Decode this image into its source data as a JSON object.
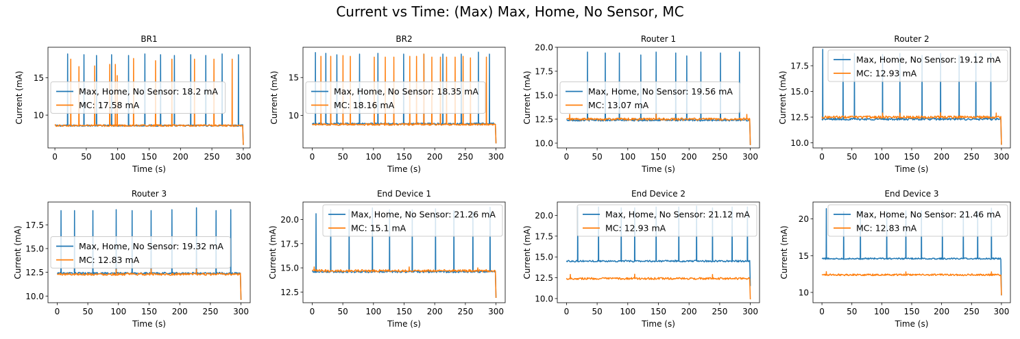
{
  "figure": {
    "suptitle": "Current vs Time: (Max) Max, Home, No Sensor, MC",
    "colors": {
      "series_a": "#1f77b4",
      "series_b": "#ff7f0e"
    }
  },
  "chart_data": [
    {
      "type": "line",
      "title": "BR1",
      "xlabel": "Time (s)",
      "ylabel": "Current (mA)",
      "xlim": [
        -11,
        311
      ],
      "ylim": [
        5.6,
        19.1
      ],
      "xticks": [
        0,
        50,
        100,
        150,
        200,
        250,
        300
      ],
      "yticks": [
        10,
        15
      ],
      "legend_position": "center-left",
      "baseline": [
        8.6,
        8.6
      ],
      "end_drop": [
        6.0,
        6.0
      ],
      "series": [
        {
          "name": "Max, Home, No Sensor: 18.2 mA",
          "spikes": [
            [
              20,
              18.2
            ],
            [
              46,
              18.1
            ],
            [
              66,
              18.0
            ],
            [
              90,
              18.1
            ],
            [
              117,
              18.0
            ],
            [
              143,
              18.2
            ],
            [
              168,
              18.1
            ],
            [
              190,
              18.0
            ],
            [
              216,
              18.1
            ],
            [
              240,
              18.0
            ],
            [
              266,
              18.2
            ],
            [
              292,
              18.1
            ]
          ]
        },
        {
          "name": "MC: 17.58 mA",
          "spikes": [
            [
              25,
              17.5
            ],
            [
              38,
              16.5
            ],
            [
              63,
              16.6
            ],
            [
              87,
              16.8
            ],
            [
              96,
              16.8
            ],
            [
              99,
              15.3
            ],
            [
              125,
              17.6
            ],
            [
              160,
              17.3
            ],
            [
              186,
              17.5
            ],
            [
              222,
              17.5
            ],
            [
              253,
              17.5
            ],
            [
              282,
              17.5
            ]
          ]
        }
      ]
    },
    {
      "type": "line",
      "title": "BR2",
      "xlabel": "Time (s)",
      "ylabel": "Current (mA)",
      "xlim": [
        -15,
        315
      ],
      "ylim": [
        5.7,
        19.0
      ],
      "xticks": [
        0,
        50,
        100,
        150,
        200,
        250,
        300
      ],
      "yticks": [
        10,
        15
      ],
      "legend_position": "center-left",
      "baseline": [
        8.9,
        8.8
      ],
      "end_drop": [
        6.3,
        6.3
      ],
      "series": [
        {
          "name": "Max, Home, No Sensor: 18.35 mA",
          "spikes": [
            [
              5,
              18.3
            ],
            [
              22,
              18.2
            ],
            [
              40,
              18.0
            ],
            [
              77,
              18.1
            ],
            [
              107,
              18.2
            ],
            [
              149,
              18.1
            ],
            [
              182,
              18.1
            ],
            [
              213,
              18.1
            ],
            [
              243,
              18.1
            ],
            [
              271,
              18.35
            ],
            [
              289,
              18.1
            ]
          ]
        },
        {
          "name": "MC: 18.16 mA",
          "spikes": [
            [
              14,
              17.8
            ],
            [
              30,
              17.8
            ],
            [
              50,
              17.9
            ],
            [
              62,
              17.8
            ],
            [
              101,
              17.7
            ],
            [
              119,
              17.7
            ],
            [
              133,
              17.7
            ],
            [
              159,
              17.8
            ],
            [
              170,
              17.8
            ],
            [
              182,
              18.1
            ],
            [
              195,
              17.7
            ],
            [
              209,
              17.7
            ],
            [
              219,
              17.7
            ],
            [
              233,
              17.7
            ],
            [
              246,
              17.8
            ],
            [
              258,
              17.6
            ],
            [
              284,
              17.7
            ]
          ]
        }
      ]
    },
    {
      "type": "line",
      "title": "Router 1",
      "xlabel": "Time (s)",
      "ylabel": "Current (mA)",
      "xlim": [
        -15,
        315
      ],
      "ylim": [
        9.5,
        20.0
      ],
      "xticks": [
        0,
        50,
        100,
        150,
        200,
        250,
        300
      ],
      "yticks": [
        10.0,
        12.5,
        15.0,
        17.5,
        20.0
      ],
      "legend_position": "center-left",
      "baseline": [
        12.4,
        12.5
      ],
      "end_drop": [
        9.8,
        9.8
      ],
      "series": [
        {
          "name": "Max, Home, No Sensor: 19.56 mA",
          "spikes": [
            [
              34,
              19.5
            ],
            [
              63,
              19.4
            ],
            [
              86,
              19.4
            ],
            [
              121,
              19.2
            ],
            [
              146,
              19.5
            ],
            [
              178,
              19.4
            ],
            [
              196,
              19.1
            ],
            [
              219,
              19.5
            ],
            [
              251,
              19.4
            ],
            [
              282,
              19.5
            ]
          ]
        },
        {
          "name": "MC: 13.07 mA",
          "spikes": [
            [
              5,
              13.0
            ],
            [
              146,
              13.07
            ],
            [
              294,
              13.0
            ]
          ]
        }
      ]
    },
    {
      "type": "line",
      "title": "Router 2",
      "xlabel": "Time (s)",
      "ylabel": "Current (mA)",
      "xlim": [
        -15,
        315
      ],
      "ylim": [
        9.5,
        19.3
      ],
      "xticks": [
        0,
        50,
        100,
        150,
        200,
        250,
        300
      ],
      "yticks": [
        10.0,
        12.5,
        15.0,
        17.5
      ],
      "legend_position": "top-right",
      "baseline": [
        12.3,
        12.5
      ],
      "end_drop": [
        9.8,
        9.8
      ],
      "series": [
        {
          "name": "Max, Home, No Sensor: 19.12 mA",
          "spikes": [
            [
              1,
              19.1
            ],
            [
              35,
              18.6
            ],
            [
              54,
              18.7
            ],
            [
              101,
              18.6
            ],
            [
              130,
              18.7
            ],
            [
              167,
              18.5
            ],
            [
              198,
              18.7
            ],
            [
              229,
              18.5
            ],
            [
              257,
              18.7
            ],
            [
              282,
              18.7
            ]
          ]
        },
        {
          "name": "MC: 12.93 mA",
          "spikes": [
            [
              101,
              12.9
            ],
            [
              130,
              12.9
            ],
            [
              198,
              12.93
            ],
            [
              291,
              12.9
            ]
          ]
        }
      ]
    },
    {
      "type": "line",
      "title": "Router 3",
      "xlabel": "Time (s)",
      "ylabel": "Current (mA)",
      "xlim": [
        -15,
        315
      ],
      "ylim": [
        9.3,
        19.9
      ],
      "xticks": [
        0,
        50,
        100,
        150,
        200,
        250,
        300
      ],
      "yticks": [
        10.0,
        12.5,
        15.0,
        17.5
      ],
      "legend_position": "center-left",
      "baseline": [
        12.4,
        12.3
      ],
      "end_drop": [
        9.6,
        9.6
      ],
      "series": [
        {
          "name": "Max, Home, No Sensor: 19.32 mA",
          "spikes": [
            [
              6,
              19.0
            ],
            [
              28,
              19.0
            ],
            [
              58,
              19.0
            ],
            [
              96,
              19.1
            ],
            [
              122,
              19.0
            ],
            [
              153,
              19.0
            ],
            [
              187,
              19.1
            ],
            [
              227,
              19.3
            ],
            [
              259,
              19.0
            ],
            [
              283,
              19.1
            ]
          ]
        },
        {
          "name": "MC: 12.83 mA",
          "spikes": [
            [
              96,
              12.8
            ],
            [
              153,
              12.83
            ],
            [
              227,
              12.8
            ]
          ]
        }
      ]
    },
    {
      "type": "line",
      "title": "End Device 1",
      "xlabel": "Time (s)",
      "ylabel": "Current (mA)",
      "xlim": [
        -15,
        315
      ],
      "ylim": [
        11.4,
        21.8
      ],
      "xticks": [
        0,
        50,
        100,
        150,
        200,
        250,
        300
      ],
      "yticks": [
        12.5,
        15.0,
        17.5,
        20.0
      ],
      "legend_position": "top-right",
      "baseline": [
        14.6,
        14.7
      ],
      "end_drop": [
        11.9,
        11.9
      ],
      "series": [
        {
          "name": "Max, Home, No Sensor: 21.26 mA",
          "spikes": [
            [
              6,
              20.6
            ],
            [
              30,
              21.0
            ],
            [
              60,
              21.0
            ],
            [
              98,
              21.2
            ],
            [
              126,
              21.0
            ],
            [
              163,
              21.0
            ],
            [
              201,
              21.1
            ],
            [
              231,
              20.9
            ],
            [
              262,
              20.8
            ],
            [
              290,
              21.26
            ]
          ]
        },
        {
          "name": "MC: 15.1 mA",
          "spikes": [
            [
              3,
              15.1
            ],
            [
              158,
              15.1
            ],
            [
              270,
              15.0
            ]
          ]
        }
      ]
    },
    {
      "type": "line",
      "title": "End Device 2",
      "xlabel": "Time (s)",
      "ylabel": "Current (mA)",
      "xlim": [
        -15,
        315
      ],
      "ylim": [
        9.5,
        21.6
      ],
      "xticks": [
        0,
        50,
        100,
        150,
        200,
        250,
        300
      ],
      "yticks": [
        10.0,
        12.5,
        15.0,
        17.5,
        20.0
      ],
      "legend_position": "top-right",
      "baseline": [
        14.5,
        12.4
      ],
      "end_drop": [
        11.5,
        9.9
      ],
      "series": [
        {
          "name": "Max, Home, No Sensor: 21.12 mA",
          "spikes": [
            [
              18,
              21.0
            ],
            [
              52,
              21.0
            ],
            [
              89,
              20.9
            ],
            [
              111,
              20.9
            ],
            [
              146,
              21.0
            ],
            [
              183,
              21.0
            ],
            [
              212,
              21.12
            ],
            [
              238,
              20.9
            ],
            [
              270,
              21.0
            ],
            [
              295,
              21.0
            ]
          ]
        },
        {
          "name": "MC: 12.93 mA",
          "spikes": [
            [
              6,
              12.9
            ],
            [
              111,
              12.93
            ],
            [
              238,
              12.9
            ]
          ]
        }
      ]
    },
    {
      "type": "line",
      "title": "End Device 3",
      "xlabel": "Time (s)",
      "ylabel": "Current (mA)",
      "xlim": [
        -15,
        315
      ],
      "ylim": [
        8.6,
        22.3
      ],
      "xticks": [
        0,
        50,
        100,
        150,
        200,
        250,
        300
      ],
      "yticks": [
        10,
        15,
        20
      ],
      "legend_position": "top-right",
      "baseline": [
        14.6,
        12.4
      ],
      "end_drop": [
        9.6,
        9.6
      ],
      "series": [
        {
          "name": "Max, Home, No Sensor: 21.46 mA",
          "spikes": [
            [
              7,
              21.4
            ],
            [
              36,
              21.0
            ],
            [
              64,
              21.1
            ],
            [
              108,
              21.0
            ],
            [
              140,
              21.1
            ],
            [
              166,
              21.1
            ],
            [
              201,
              21.2
            ],
            [
              236,
              21.0
            ],
            [
              260,
              21.0
            ],
            [
              283,
              21.46
            ]
          ]
        },
        {
          "name": "MC: 12.83 mA",
          "spikes": [
            [
              7,
              12.83
            ],
            [
              140,
              12.8
            ],
            [
              283,
              12.8
            ]
          ]
        }
      ]
    }
  ]
}
